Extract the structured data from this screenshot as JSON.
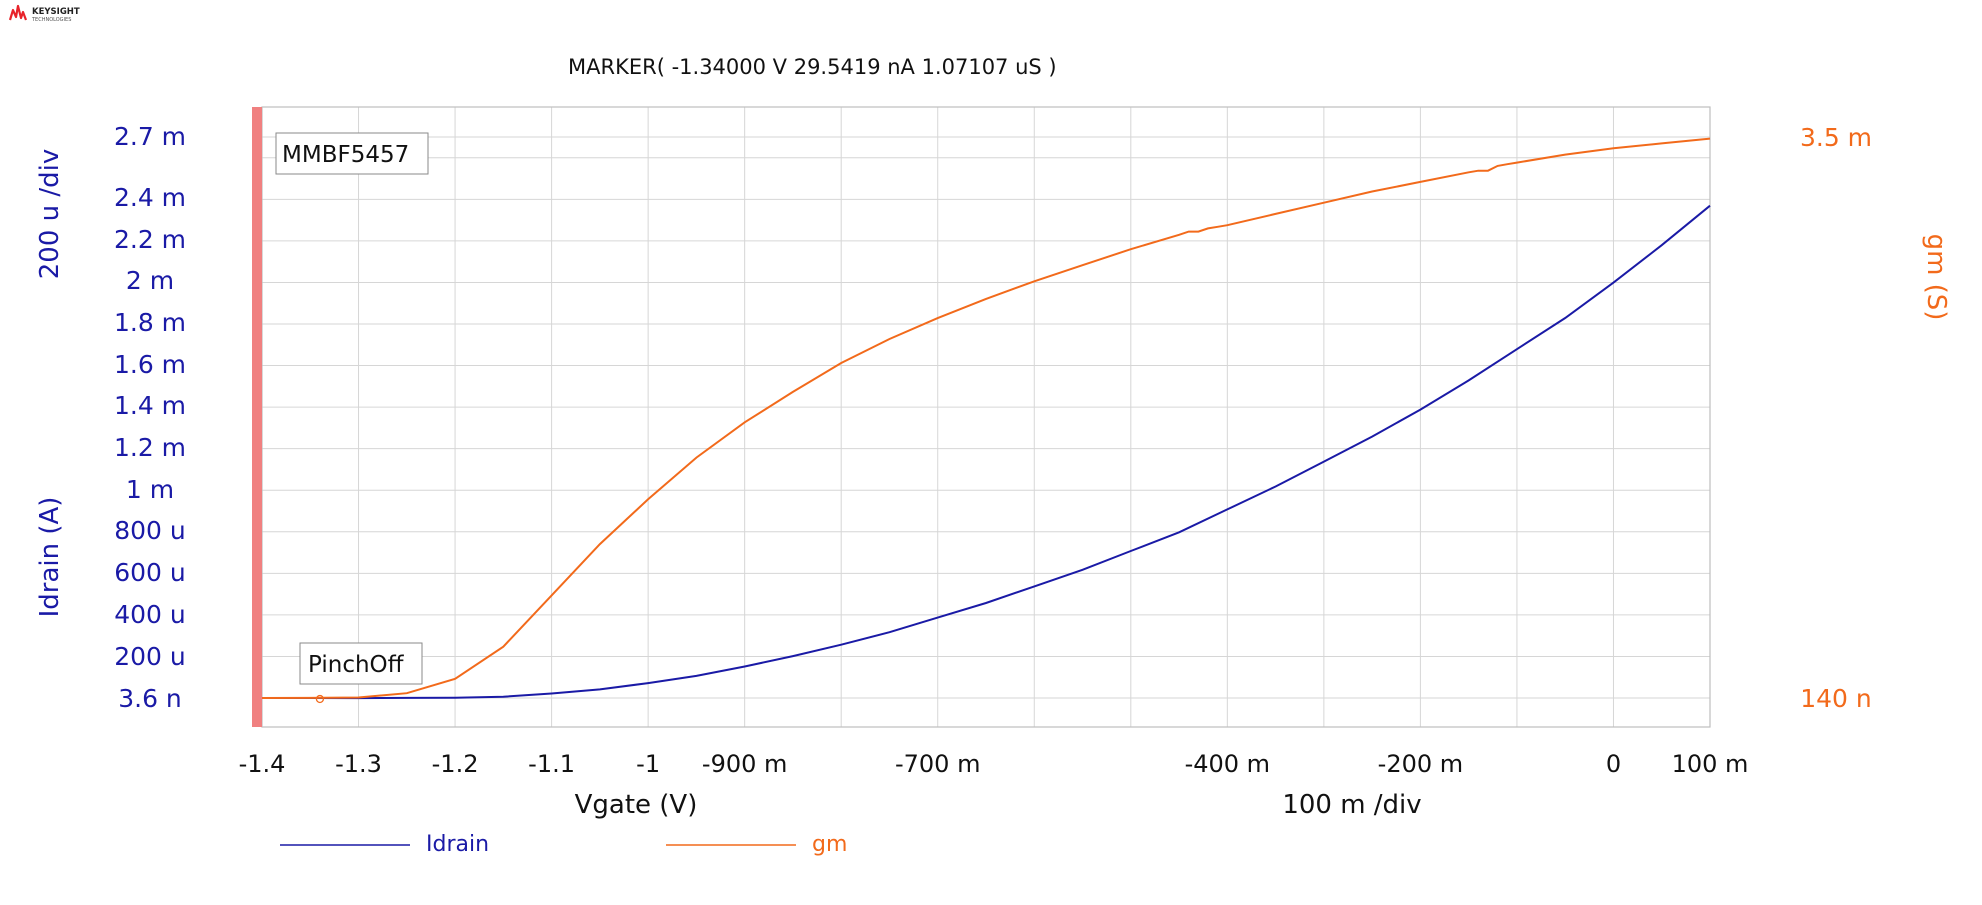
{
  "brand": {
    "name": "KEYSIGHT",
    "sub": "TECHNOLOGIES",
    "logo_color": "#e8232a"
  },
  "marker_readout": "MARKER(  -1.34000 V   29.5419 nA  1.07107 uS )",
  "colors": {
    "idrain": "#1a1aa6",
    "gm": "#f26a1b",
    "grid": "#d6d6d6",
    "frame": "#bfbfbf",
    "left_bar": "#f08080",
    "text": "#111111"
  },
  "chart_data": {
    "type": "line",
    "title": "",
    "device_label": "MMBF5457",
    "annotation_label": "PinchOff",
    "marker": {
      "x": -1.34,
      "series": "gm"
    },
    "x_axis": {
      "label": "Vgate (V)",
      "scale_label": "100 m /div",
      "range": [
        -1.4,
        0.1
      ],
      "ticks": [
        {
          "v": -1.4,
          "label": "-1.4"
        },
        {
          "v": -1.3,
          "label": "-1.3"
        },
        {
          "v": -1.2,
          "label": "-1.2"
        },
        {
          "v": -1.1,
          "label": "-1.1"
        },
        {
          "v": -1.0,
          "label": "-1"
        },
        {
          "v": -0.9,
          "label": "-900 m"
        },
        {
          "v": -0.7,
          "label": "-700 m"
        },
        {
          "v": -0.4,
          "label": "-400 m"
        },
        {
          "v": -0.2,
          "label": "-200 m"
        },
        {
          "v": 0.0,
          "label": "0"
        },
        {
          "v": 0.1,
          "label": "100 m"
        }
      ]
    },
    "y_left": {
      "label": "Idrain (A)",
      "scale_label": "200 u /div",
      "range": [
        3.6e-06,
        0.0027
      ],
      "ticks": [
        {
          "v": 3.6e-06,
          "label": "3.6 n"
        },
        {
          "v": 0.0002,
          "label": "200 u"
        },
        {
          "v": 0.0004,
          "label": "400 u"
        },
        {
          "v": 0.0006,
          "label": "600 u"
        },
        {
          "v": 0.0008,
          "label": "800 u"
        },
        {
          "v": 0.001,
          "label": "1 m"
        },
        {
          "v": 0.0012,
          "label": "1.2 m"
        },
        {
          "v": 0.0014,
          "label": "1.4 m"
        },
        {
          "v": 0.0016,
          "label": "1.6 m"
        },
        {
          "v": 0.0018,
          "label": "1.8 m"
        },
        {
          "v": 0.002,
          "label": "2 m"
        },
        {
          "v": 0.0022,
          "label": "2.2 m"
        },
        {
          "v": 0.0024,
          "label": "2.4 m"
        },
        {
          "v": 0.0027,
          "label": "2.7 m"
        }
      ]
    },
    "y_right": {
      "label": "gm (S)",
      "range": [
        1.4e-07,
        0.0035
      ],
      "ticks": [
        {
          "v": 1.4e-07,
          "label": "140 n"
        },
        {
          "v": 0.0035,
          "label": "3.5 m"
        }
      ]
    },
    "grid": true,
    "legend_position": "bottom",
    "series": [
      {
        "name": "Idrain",
        "axis": "left",
        "x": [
          -1.4,
          -1.35,
          -1.3,
          -1.25,
          -1.2,
          -1.15,
          -1.1,
          -1.05,
          -1.0,
          -0.95,
          -0.9,
          -0.85,
          -0.8,
          -0.75,
          -0.7,
          -0.65,
          -0.6,
          -0.55,
          -0.5,
          -0.45,
          -0.4,
          -0.35,
          -0.3,
          -0.25,
          -0.2,
          -0.15,
          -0.1,
          -0.05,
          0.0,
          0.05,
          0.1
        ],
        "y": [
          3.6e-06,
          3.6e-06,
          3e-06,
          4e-06,
          5e-06,
          1e-05,
          2.5e-05,
          4.5e-05,
          7.5e-05,
          0.00011,
          0.000155,
          0.000205,
          0.00026,
          0.00032,
          0.00039,
          0.00046,
          0.00054,
          0.00062,
          0.00071,
          0.0008,
          0.00091,
          0.00102,
          0.00114,
          0.00126,
          0.00139,
          0.00153,
          0.00168,
          0.00183,
          0.002,
          0.00218,
          0.00237
        ]
      },
      {
        "name": "gm",
        "axis": "right",
        "x": [
          -1.4,
          -1.35,
          -1.3,
          -1.25,
          -1.2,
          -1.15,
          -1.1,
          -1.05,
          -1.0,
          -0.95,
          -0.9,
          -0.85,
          -0.8,
          -0.75,
          -0.7,
          -0.65,
          -0.6,
          -0.55,
          -0.5,
          -0.45,
          -0.44,
          -0.43,
          -0.42,
          -0.41,
          -0.4,
          -0.35,
          -0.3,
          -0.25,
          -0.2,
          -0.15,
          -0.14,
          -0.13,
          -0.12,
          -0.11,
          -0.1,
          -0.05,
          0.0,
          0.05,
          0.1
        ],
        "y": [
          1.4e-07,
          5e-07,
          3e-06,
          3e-05,
          0.00012,
          0.00032,
          0.00064,
          0.00096,
          0.00124,
          0.0015,
          0.00172,
          0.00191,
          0.00209,
          0.00224,
          0.00237,
          0.00249,
          0.0026,
          0.0027,
          0.0028,
          0.00289,
          0.00291,
          0.00291,
          0.00293,
          0.00294,
          0.00295,
          0.00302,
          0.00309,
          0.00316,
          0.00322,
          0.00328,
          0.00329,
          0.00329,
          0.00332,
          0.00333,
          0.00334,
          0.00339,
          0.00343,
          0.00346,
          0.00349
        ]
      }
    ]
  }
}
